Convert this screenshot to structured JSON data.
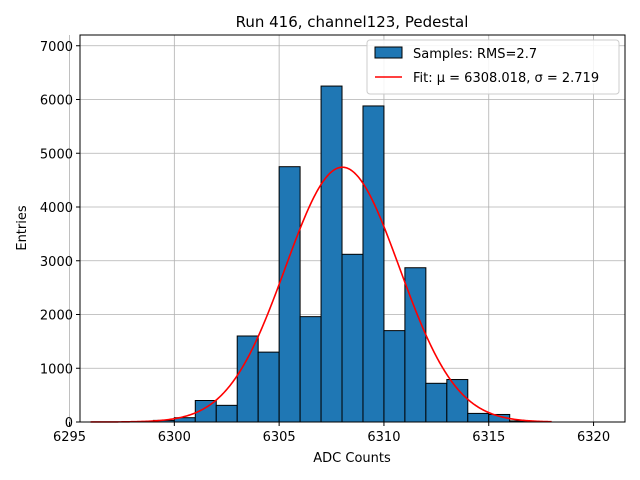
{
  "chart_data": {
    "type": "bar",
    "title": "Run 416, channel123, Pedestal",
    "xlabel": "ADC Counts",
    "ylabel": "Entries",
    "xlim": [
      6295.5,
      6321.5
    ],
    "ylim": [
      0,
      7200
    ],
    "xticks": [
      6295,
      6300,
      6305,
      6310,
      6315,
      6320
    ],
    "yticks": [
      0,
      1000,
      2000,
      3000,
      4000,
      5000,
      6000,
      7000
    ],
    "grid": true,
    "legend_position": "top-right",
    "bin_width": 1,
    "bins": [
      {
        "left": 6299,
        "value": 30
      },
      {
        "left": 6300,
        "value": 80
      },
      {
        "left": 6301,
        "value": 400
      },
      {
        "left": 6302,
        "value": 310
      },
      {
        "left": 6303,
        "value": 1600
      },
      {
        "left": 6304,
        "value": 1300
      },
      {
        "left": 6305,
        "value": 4750
      },
      {
        "left": 6306,
        "value": 1960
      },
      {
        "left": 6307,
        "value": 6250
      },
      {
        "left": 6308,
        "value": 3120
      },
      {
        "left": 6309,
        "value": 5880
      },
      {
        "left": 6310,
        "value": 1700
      },
      {
        "left": 6311,
        "value": 2870
      },
      {
        "left": 6312,
        "value": 720
      },
      {
        "left": 6313,
        "value": 790
      },
      {
        "left": 6314,
        "value": 160
      },
      {
        "left": 6315,
        "value": 140
      },
      {
        "left": 6316,
        "value": 20
      }
    ],
    "series": [
      {
        "name": "Samples: RMS=2.7",
        "kind": "histogram",
        "color": "#1f77b4"
      },
      {
        "name": "Fit: μ = 6308.018, σ = 2.719",
        "kind": "gaussian_fit",
        "color": "#ff0000",
        "mu": 6308.018,
        "sigma": 2.719,
        "amplitude": 4740,
        "x_range": [
          6296,
          6318
        ]
      }
    ]
  }
}
